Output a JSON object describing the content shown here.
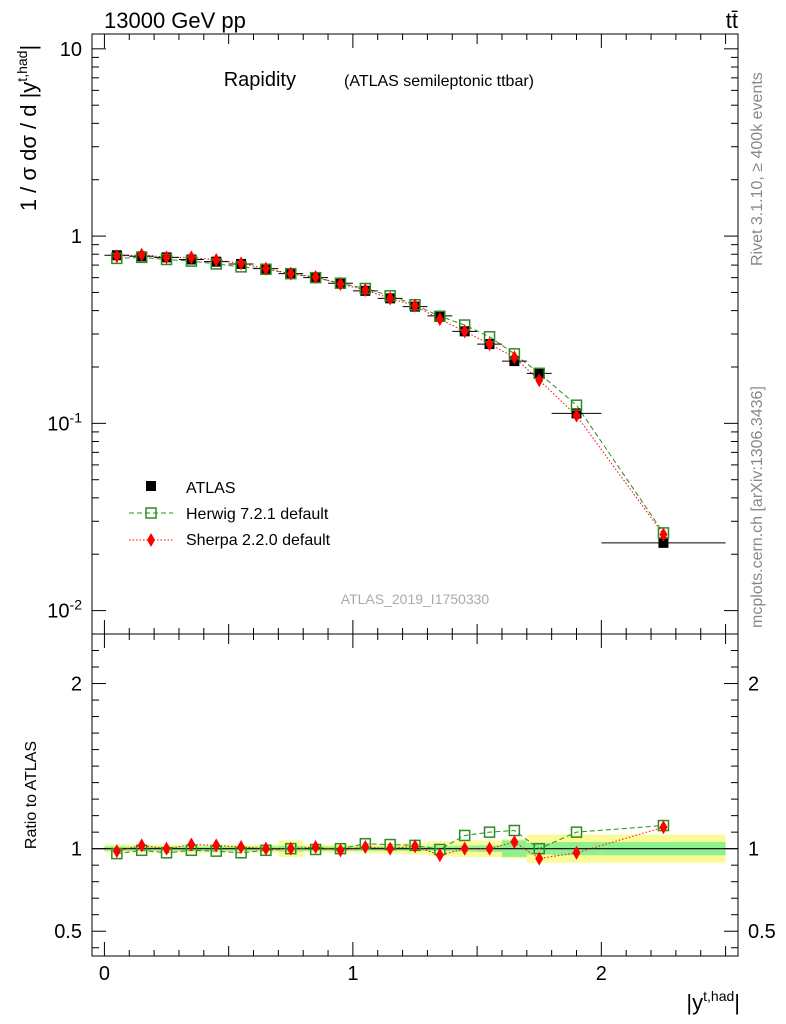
{
  "header": {
    "energy_label": "13000 GeV pp",
    "process_label": "tt̄"
  },
  "side_labels": {
    "rivet": "Rivet 3.1.10, ≥ 400k events",
    "mcplots": "mcplots.cern.ch [arXiv:1306.3436]"
  },
  "chart_data": [
    {
      "type": "scatter",
      "title": "Rapidity",
      "subtitle": "(ATLAS semileptonic ttbar)",
      "watermark": "ATLAS_2019_I1750330",
      "ylabel": "1 / σ dσ / d |y^{t,had}|",
      "y_scale": "log",
      "ylim": [
        0.0075,
        12
      ],
      "xlim": [
        -0.05,
        2.55
      ],
      "y_tick_labels": [
        "10",
        "1",
        "10^-1",
        "10^-2"
      ],
      "x": [
        0.05,
        0.15,
        0.25,
        0.35,
        0.45,
        0.55,
        0.65,
        0.75,
        0.85,
        0.95,
        1.05,
        1.15,
        1.25,
        1.35,
        1.45,
        1.55,
        1.65,
        1.75,
        1.9,
        2.25
      ],
      "x_err": [
        0.05,
        0.05,
        0.05,
        0.05,
        0.05,
        0.05,
        0.05,
        0.05,
        0.05,
        0.05,
        0.05,
        0.05,
        0.05,
        0.05,
        0.05,
        0.05,
        0.05,
        0.05,
        0.1,
        0.25
      ],
      "legend_position": "lower-left",
      "series": [
        {
          "name": "ATLAS",
          "marker": "filled-square",
          "color": "#000000",
          "values": [
            0.79,
            0.78,
            0.77,
            0.75,
            0.73,
            0.71,
            0.67,
            0.63,
            0.6,
            0.56,
            0.51,
            0.465,
            0.42,
            0.375,
            0.31,
            0.265,
            0.215,
            0.185,
            0.113,
            0.023
          ]
        },
        {
          "name": "Herwig 7.2.1 default",
          "marker": "open-square",
          "line": "dashed",
          "color": "#2e8b22",
          "values": [
            0.76,
            0.77,
            0.75,
            0.735,
            0.71,
            0.685,
            0.665,
            0.63,
            0.6,
            0.56,
            0.525,
            0.48,
            0.43,
            0.373,
            0.335,
            0.29,
            0.235,
            0.185,
            0.125,
            0.026
          ]
        },
        {
          "name": "Sherpa 2.2.0 default",
          "marker": "filled-diamond",
          "line": "dotted",
          "color": "#ff0000",
          "values": [
            0.78,
            0.795,
            0.77,
            0.77,
            0.745,
            0.715,
            0.67,
            0.63,
            0.605,
            0.555,
            0.515,
            0.465,
            0.425,
            0.36,
            0.31,
            0.265,
            0.225,
            0.17,
            0.11,
            0.0255
          ]
        }
      ]
    },
    {
      "type": "scatter",
      "ylabel": "Ratio to ATLAS",
      "xlabel": "|y^{t,had}|",
      "ylim": [
        0.35,
        2.3
      ],
      "xlim": [
        -0.05,
        2.55
      ],
      "y_ticks": [
        0.5,
        1,
        2
      ],
      "y_tick_labels": [
        "0.5",
        "1",
        "2"
      ],
      "x_ticks": [
        0,
        1,
        2
      ],
      "x_tick_labels": [
        "0",
        "1",
        "2"
      ],
      "x": [
        0.05,
        0.15,
        0.25,
        0.35,
        0.45,
        0.55,
        0.65,
        0.75,
        0.85,
        0.95,
        1.05,
        1.15,
        1.25,
        1.35,
        1.45,
        1.55,
        1.65,
        1.75,
        1.9,
        2.25
      ],
      "x_err": [
        0.05,
        0.05,
        0.05,
        0.05,
        0.05,
        0.05,
        0.05,
        0.05,
        0.05,
        0.05,
        0.05,
        0.05,
        0.05,
        0.05,
        0.05,
        0.05,
        0.05,
        0.05,
        0.1,
        0.25
      ],
      "stat_band": [
        0.013,
        0.013,
        0.013,
        0.013,
        0.013,
        0.013,
        0.013,
        0.018,
        0.013,
        0.013,
        0.013,
        0.013,
        0.013,
        0.015,
        0.018,
        0.02,
        0.05,
        0.035,
        0.04,
        0.04
      ],
      "total_band": [
        0.025,
        0.025,
        0.025,
        0.025,
        0.025,
        0.025,
        0.025,
        0.05,
        0.025,
        0.025,
        0.025,
        0.03,
        0.035,
        0.045,
        0.05,
        0.05,
        0.06,
        0.085,
        0.085,
        0.085
      ],
      "band_colors": {
        "stat": "#90f090",
        "total": "#fafa96"
      },
      "series": [
        {
          "name": "Herwig 7.2.1 default",
          "color": "#2e8b22",
          "values": [
            0.97,
            0.99,
            0.975,
            0.99,
            0.985,
            0.975,
            0.99,
            1.0,
            0.995,
            1.0,
            1.03,
            1.025,
            1.02,
            0.995,
            1.08,
            1.1,
            1.11,
            1.0,
            1.1,
            1.14
          ]
        },
        {
          "name": "Sherpa 2.2.0 default",
          "color": "#ff0000",
          "values": [
            0.985,
            1.02,
            1.0,
            1.025,
            1.02,
            1.01,
            1.0,
            1.0,
            1.01,
            0.99,
            1.01,
            1.0,
            1.015,
            0.96,
            1.0,
            1.0,
            1.04,
            0.94,
            0.975,
            1.13
          ]
        }
      ]
    }
  ]
}
